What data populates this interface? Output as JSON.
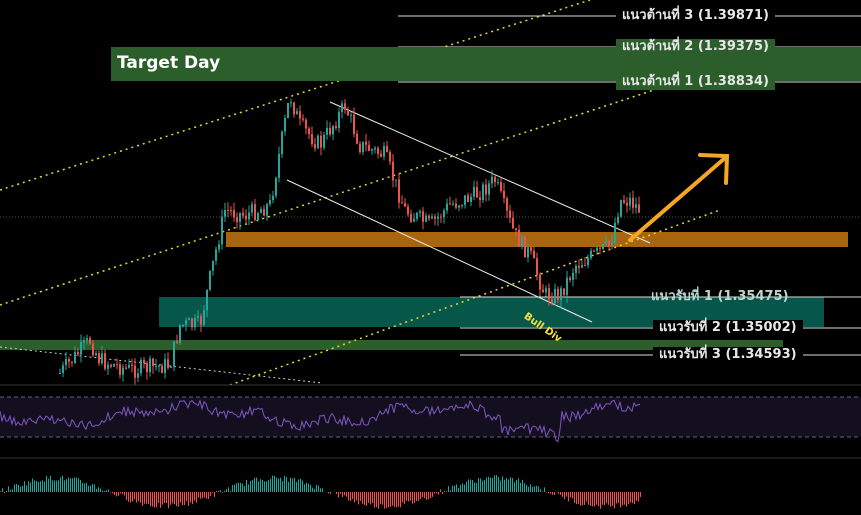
{
  "zones": {
    "target_label": "Target Day"
  },
  "levels": {
    "res3": "แนวต้านที่ 3 (1.39871)",
    "res2": "แนวต้านที่ 2 (1.39375)",
    "res1": "แนวต้านที่ 1 (1.38834)",
    "sup1": "แนวรับที่ 1 (1.35475)",
    "sup2": "แนวรับที่ 2 (1.35002)",
    "sup3": "แนวรับที่ 3 (1.34593)"
  },
  "annotation": {
    "divergence": "Bull Div"
  },
  "colors": {
    "up": "#26a69a",
    "down": "#ef5350",
    "target": "#2b5e2b",
    "orange": "#a8650d",
    "support_zone": "#07564a",
    "arrow": "#f5a623",
    "rsi": "#7e57c2",
    "channel": "#e6d63a"
  },
  "chart_data": {
    "type": "candlestick",
    "title": "",
    "price_levels": {
      "resistance": [
        1.39871,
        1.39375,
        1.38834
      ],
      "support": [
        1.35475,
        1.35002,
        1.34593
      ]
    },
    "closes_approx": [
      1.3431,
      1.3482,
      1.3451,
      1.3436,
      1.3444,
      1.3506,
      1.3506,
      1.3615,
      1.3685,
      1.3677,
      1.3693,
      1.3864,
      1.3817,
      1.3786,
      1.3848,
      1.3786,
      1.377,
      1.3685,
      1.3661,
      1.3693,
      1.3708,
      1.3731,
      1.3685,
      1.3646,
      1.3615,
      1.3553,
      1.3553,
      1.3599,
      1.3615,
      1.363,
      1.37,
      1.37,
      1.3685
    ]
  }
}
